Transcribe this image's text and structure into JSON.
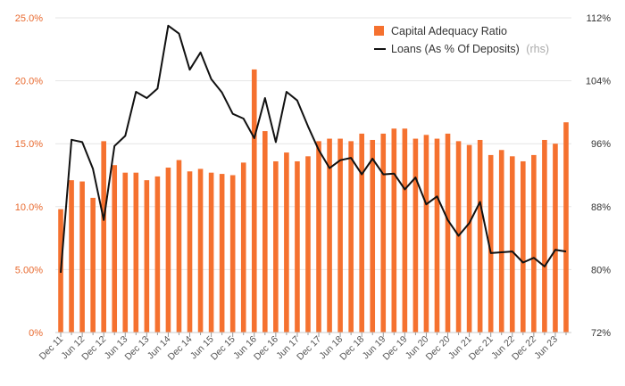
{
  "chart_data": {
    "type": "bar+line",
    "title": "",
    "colors": {
      "bar": "#f5712f",
      "line": "#111111",
      "grid": "#e6e6e6",
      "left_tick": "#e8692e",
      "right_tick": "#333333"
    },
    "left_axis": {
      "ylim": [
        0,
        25
      ],
      "ticks": [
        0,
        5,
        10,
        15,
        20,
        25
      ],
      "tick_labels": [
        "0%",
        "5.00%",
        "10.0%",
        "15.0%",
        "20.0%",
        "25.0%"
      ]
    },
    "right_axis": {
      "ylim": [
        72,
        112
      ],
      "ticks": [
        72,
        80,
        88,
        96,
        104,
        112
      ],
      "tick_labels": [
        "72%",
        "80%",
        "88%",
        "96%",
        "104%",
        "112%"
      ]
    },
    "x_tick_labels": [
      "Dec 11",
      "Jun 12",
      "Dec 12",
      "Jun 13",
      "Dec 13",
      "Jun 14",
      "Dec 14",
      "Jun 15",
      "Dec 15",
      "Jun 16",
      "Dec 16",
      "Jun 17",
      "Dec 17",
      "Jun 18",
      "Dec 18",
      "Jun 19",
      "Dec 19",
      "Jun 20",
      "Dec 20",
      "Jun 21",
      "Dec 21",
      "Jun 22",
      "Dec 22",
      "Jun 23"
    ],
    "legend": {
      "bar_label": "Capital Adequacy Ratio",
      "line_label": "Loans (As % Of Deposits)",
      "line_suffix": "(rhs)"
    },
    "series": [
      {
        "name": "Capital Adequacy Ratio",
        "axis": "left",
        "type": "bar",
        "values": [
          9.8,
          12.1,
          12.0,
          10.7,
          15.2,
          13.3,
          12.7,
          12.7,
          12.1,
          12.4,
          13.1,
          13.7,
          12.8,
          13.0,
          12.7,
          12.6,
          12.5,
          13.5,
          20.9,
          16.0,
          13.6,
          14.3,
          13.6,
          14.0,
          15.2,
          15.4,
          15.4,
          15.2,
          15.8,
          15.3,
          15.8,
          16.2,
          16.2,
          15.4,
          15.7,
          15.4,
          15.8,
          15.2,
          14.9,
          15.3,
          14.1,
          14.5,
          14.0,
          13.6,
          14.1,
          15.3,
          15.0,
          16.7
        ]
      },
      {
        "name": "Loans (As % Of Deposits)",
        "axis": "right",
        "type": "line",
        "values": [
          79.6,
          96.5,
          96.2,
          92.8,
          86.3,
          95.7,
          97.0,
          102.6,
          101.8,
          103.0,
          111.0,
          110.0,
          105.4,
          107.6,
          104.2,
          102.5,
          99.8,
          99.2,
          96.7,
          101.8,
          96.2,
          102.6,
          101.5,
          98.2,
          95.2,
          92.9,
          93.9,
          94.2,
          92.1,
          94.1,
          92.1,
          92.2,
          90.2,
          91.7,
          88.3,
          89.3,
          86.3,
          84.3,
          85.9,
          88.6,
          82.1,
          82.2,
          82.3,
          80.9,
          81.5,
          80.4,
          82.5,
          82.3
        ]
      }
    ]
  }
}
